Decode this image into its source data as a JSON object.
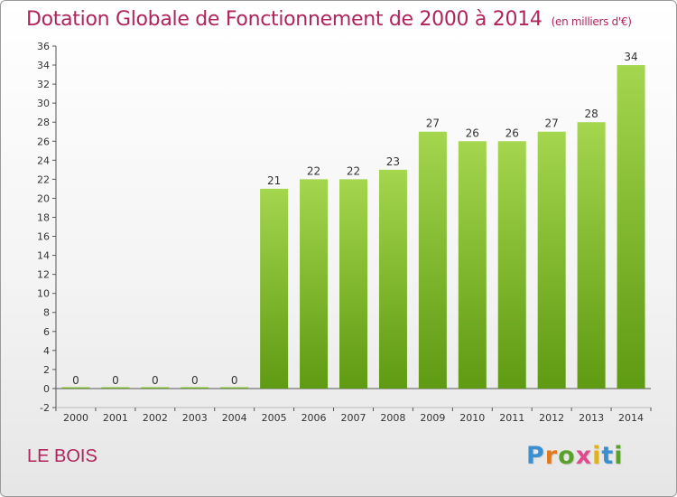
{
  "header": {
    "title": "Dotation Globale de Fonctionnement de 2000 à 2014",
    "subtitle": "(en milliers d'€)"
  },
  "footer": {
    "place": "LE BOIS",
    "brand": "Proxiti",
    "brand_colors": [
      "#3a8fd0",
      "#e07a1f",
      "#5aa02c",
      "#e04b8e",
      "#e0b21f",
      "#3a8fd0",
      "#5aa02c"
    ]
  },
  "colors": {
    "title": "#b0245c",
    "bar_top": "#a4d64e",
    "bar_bottom": "#5e9a12",
    "axis": "#555555"
  },
  "chart_data": {
    "type": "bar",
    "title": "Dotation Globale de Fonctionnement de 2000 à 2014",
    "subtitle": "(en milliers d'€)",
    "categories": [
      "2000",
      "2001",
      "2002",
      "2003",
      "2004",
      "2005",
      "2006",
      "2007",
      "2008",
      "2009",
      "2010",
      "2011",
      "2012",
      "2013",
      "2014"
    ],
    "values": [
      0,
      0,
      0,
      0,
      0,
      21,
      22,
      22,
      23,
      27,
      26,
      26,
      27,
      28,
      34
    ],
    "data_labels": [
      "0",
      "0",
      "0",
      "0",
      "0",
      "21",
      "22",
      "22",
      "23",
      "27",
      "26",
      "26",
      "27",
      "28",
      "34"
    ],
    "ylim": [
      -2,
      36
    ],
    "yticks": [
      -2,
      0,
      2,
      4,
      6,
      8,
      10,
      12,
      14,
      16,
      18,
      20,
      22,
      24,
      26,
      28,
      30,
      32,
      34,
      36
    ],
    "xlabel": "",
    "ylabel": "",
    "grid": false,
    "legend": "none"
  }
}
